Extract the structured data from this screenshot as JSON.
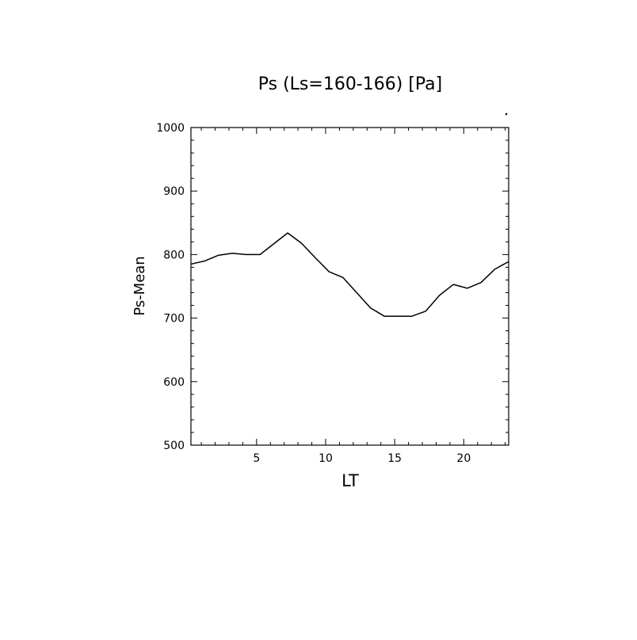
{
  "chart_data": {
    "type": "line",
    "title": "Ps (Ls=160-166) [Pa]",
    "xlabel": "LT",
    "ylabel": "Ps-Mean",
    "xlim": [
      0.25,
      23.25
    ],
    "ylim": [
      500,
      1000
    ],
    "xticks": [
      5,
      10,
      15,
      20
    ],
    "yticks": [
      500,
      600,
      700,
      800,
      900,
      1000
    ],
    "grid": false,
    "series": [
      {
        "x": [
          0.25,
          1.25,
          2.25,
          3.25,
          4.25,
          5.25,
          6.25,
          7.25,
          8.25,
          9.25,
          10.25,
          11.25,
          12.25,
          13.25,
          14.25,
          15.25,
          16.25,
          17.25,
          18.25,
          19.25,
          20.25,
          21.25,
          22.25,
          23.25
        ],
        "y": [
          785,
          790,
          799,
          802,
          800,
          800,
          817,
          834,
          818,
          795,
          773,
          764,
          740,
          716,
          703,
          703,
          703,
          711,
          736,
          753,
          747,
          756,
          777,
          789
        ]
      }
    ]
  }
}
